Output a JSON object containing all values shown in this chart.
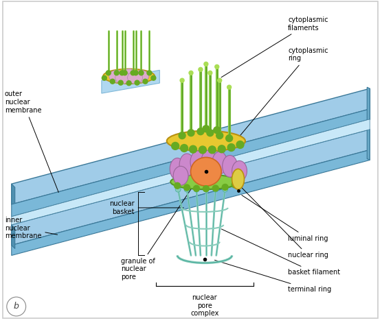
{
  "bg_color": "#f0f0f0",
  "white_bg": "#ffffff",
  "mem_top_face": "#a0cce8",
  "mem_side_face": "#6aaac8",
  "mem_front_face": "#5090b0",
  "mem_edge": "#3a7898",
  "cytoring_color": "#e8c830",
  "cytoring_edge": "#b89010",
  "nucring_color": "#88cc44",
  "nucring_edge": "#559922",
  "filament_color": "#88cc44",
  "filament_edge": "#559922",
  "bead_color": "#66aa22",
  "bead_top_color": "#aade55",
  "subunit_color": "#cc88cc",
  "subunit_edge": "#996699",
  "granule_color": "#ee8844",
  "granule_edge": "#cc6622",
  "basket_color": "#88ccbb",
  "basket_edge": "#44aa99",
  "luminal_color": "#ddcc44",
  "small_pink": "#ddaacc",
  "labels": {
    "cytoplasmic_filaments": "cytoplasmic\nfilaments",
    "cytoplasmic_ring": "cytoplasmic\nring",
    "outer_nuclear_membrane": "outer\nnuclear\nmembrane",
    "inner_nuclear_membrane": "inner\nnuclear\nmembrane",
    "nuclear_basket": "nuclear\nbasket",
    "granule_of_nuclear_pore": "granule of\nnuclear\npore",
    "nuclear_pore_complex": "nuclear\npore\ncomplex",
    "luminal_ring": "luminal ring",
    "nuclear_ring": "nuclear ring",
    "basket_filament": "basket filament",
    "terminal_ring": "terminal ring",
    "b_label": "b"
  },
  "fs": 7.0
}
